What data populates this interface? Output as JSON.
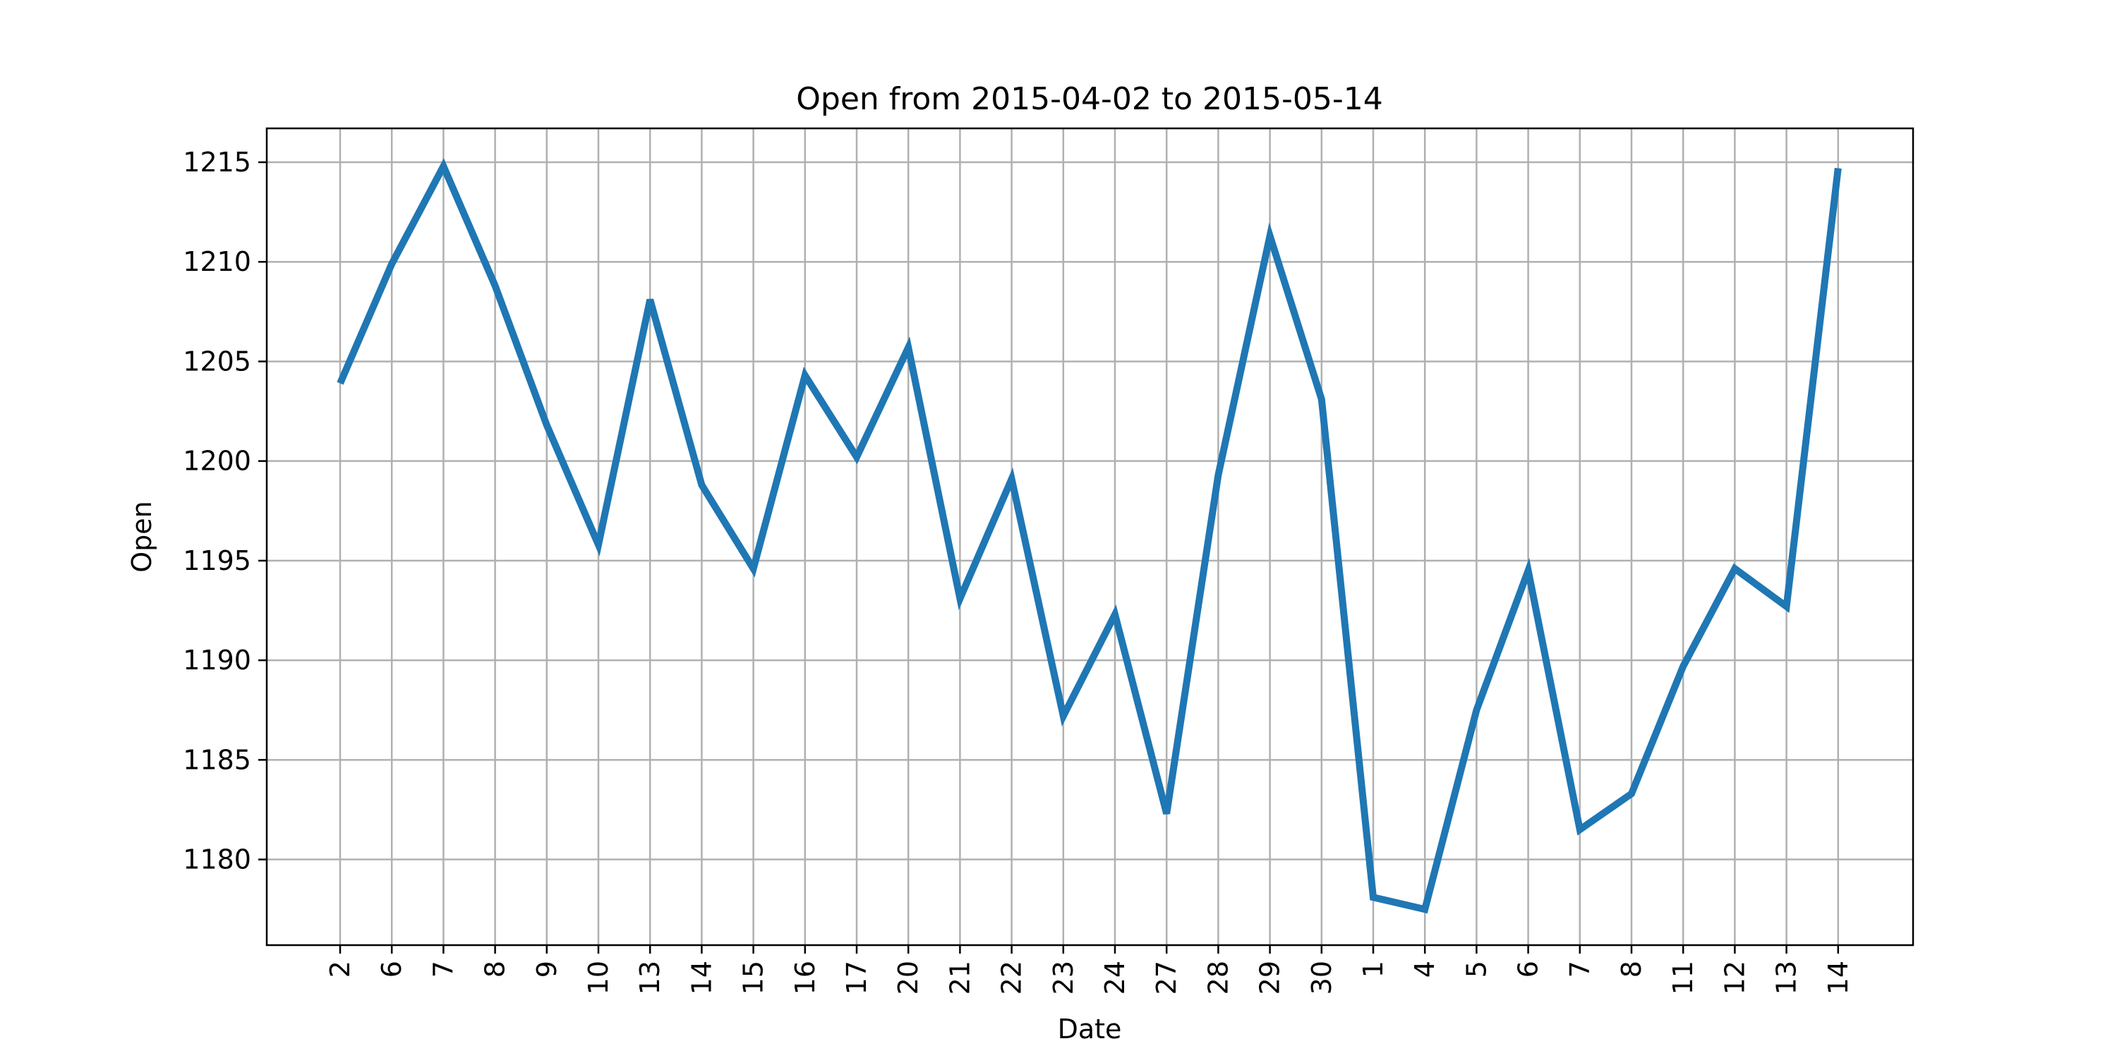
{
  "chart_data": {
    "type": "line",
    "title": "Open from 2015-04-02 to 2015-05-14",
    "xlabel": "Date",
    "ylabel": "Open",
    "x": [
      "2015-04-02",
      "2015-04-06",
      "2015-04-07",
      "2015-04-08",
      "2015-04-09",
      "2015-04-10",
      "2015-04-13",
      "2015-04-14",
      "2015-04-15",
      "2015-04-16",
      "2015-04-17",
      "2015-04-20",
      "2015-04-21",
      "2015-04-22",
      "2015-04-23",
      "2015-04-24",
      "2015-04-27",
      "2015-04-28",
      "2015-04-29",
      "2015-04-30",
      "2015-05-01",
      "2015-05-04",
      "2015-05-05",
      "2015-05-06",
      "2015-05-07",
      "2015-05-08",
      "2015-05-11",
      "2015-05-12",
      "2015-05-13",
      "2015-05-14"
    ],
    "x_tick_labels": [
      "2",
      "6",
      "7",
      "8",
      "9",
      "10",
      "13",
      "14",
      "15",
      "16",
      "17",
      "20",
      "21",
      "22",
      "23",
      "24",
      "27",
      "28",
      "29",
      "30",
      "1",
      "4",
      "5",
      "6",
      "7",
      "8",
      "11",
      "12",
      "13",
      "14"
    ],
    "series": [
      {
        "values": [
          1203.9,
          1209.9,
          1214.8,
          1208.8,
          1201.8,
          1195.8,
          1208.1,
          1198.8,
          1194.6,
          1204.3,
          1200.2,
          1205.7,
          1193.1,
          1199.1,
          1187.2,
          1192.3,
          1182.3,
          1199.3,
          1211.3,
          1203.1,
          1178.1,
          1177.5,
          1187.5,
          1194.5,
          1181.5,
          1183.3,
          1189.7,
          1194.6,
          1192.7,
          1214.7
        ],
        "color": "#1f77b4"
      }
    ],
    "yticks": [
      1180,
      1185,
      1190,
      1195,
      1200,
      1205,
      1210,
      1215
    ],
    "ylim": [
      1175.7,
      1216.7
    ],
    "grid": true,
    "legend": "none"
  }
}
